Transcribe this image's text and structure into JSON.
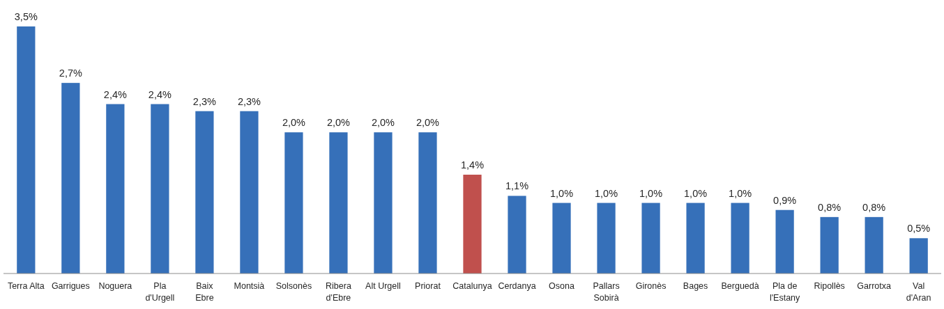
{
  "chart_data": {
    "type": "bar",
    "categories": [
      "Terra Alta",
      "Garrigues",
      "Noguera",
      "Pla d'Urgell",
      "Baix Ebre",
      "Montsià",
      "Solsonès",
      "Ribera d'Ebre",
      "Alt Urgell",
      "Priorat",
      "Catalunya",
      "Cerdanya",
      "Osona",
      "Pallars Sobirà",
      "Gironès",
      "Bages",
      "Berguedà",
      "Pla de l'Estany",
      "Ripollès",
      "Garrotxa",
      "Val d'Aran"
    ],
    "values": [
      3.5,
      2.7,
      2.4,
      2.4,
      2.3,
      2.3,
      2.0,
      2.0,
      2.0,
      2.0,
      1.4,
      1.1,
      1.0,
      1.0,
      1.0,
      1.0,
      1.0,
      0.9,
      0.8,
      0.8,
      0.5
    ],
    "colors": [
      "#3670b9",
      "#3670b9",
      "#3670b9",
      "#3670b9",
      "#3670b9",
      "#3670b9",
      "#3670b9",
      "#3670b9",
      "#3670b9",
      "#3670b9",
      "#c0504d",
      "#3670b9",
      "#3670b9",
      "#3670b9",
      "#3670b9",
      "#3670b9",
      "#3670b9",
      "#3670b9",
      "#3670b9",
      "#3670b9",
      "#3670b9"
    ],
    "value_labels": [
      "3,5%",
      "2,7%",
      "2,4%",
      "2,4%",
      "2,3%",
      "2,3%",
      "2,0%",
      "2,0%",
      "2,0%",
      "2,0%",
      "1,4%",
      "1,1%",
      "1,0%",
      "1,0%",
      "1,0%",
      "1,0%",
      "1,0%",
      "0,9%",
      "0,8%",
      "0,8%",
      "0,5%"
    ]
  }
}
